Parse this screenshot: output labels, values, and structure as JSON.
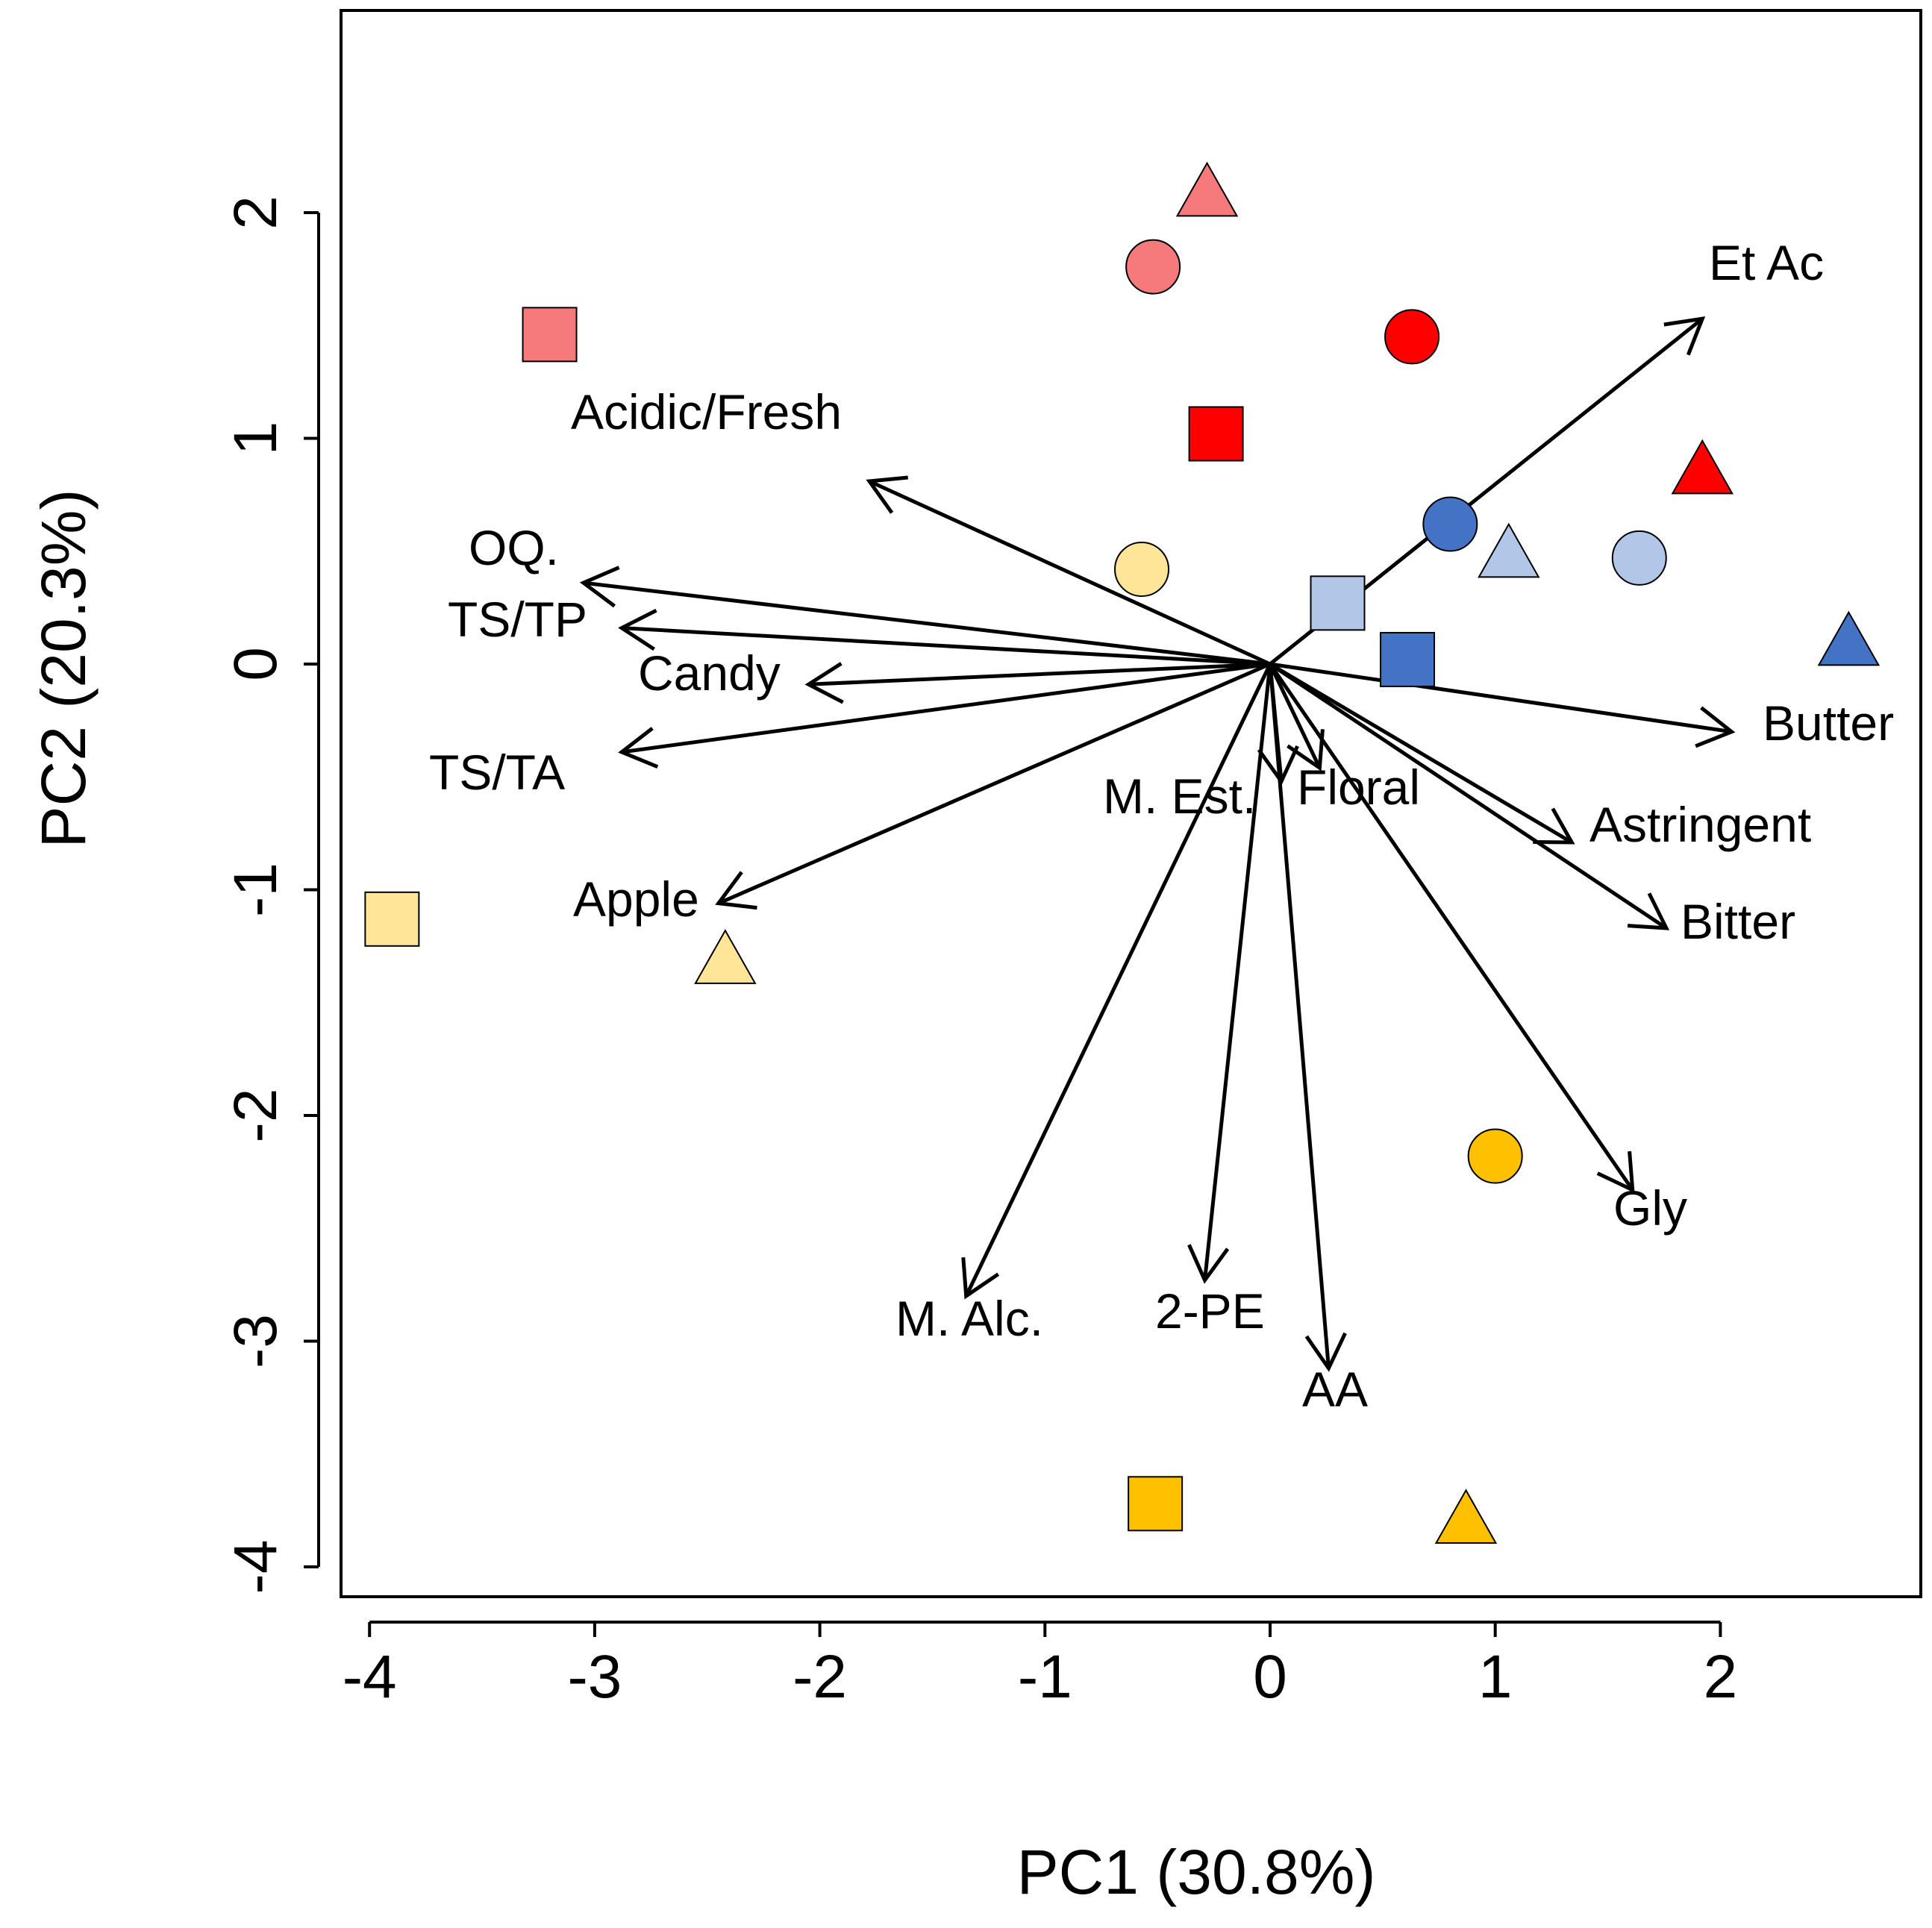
{
  "chart_data": {
    "type": "scatter",
    "subtype": "pca-biplot",
    "title": "",
    "xlabel": "PC1 (30.8%)",
    "ylabel": "PC2 (20.3%)",
    "xlim": [
      -4.15,
      2.9
    ],
    "ylim": [
      -4.2,
      2.9
    ],
    "x_ticks": [
      -4,
      -3,
      -2,
      -1,
      0,
      1,
      2
    ],
    "x_tick_labels": [
      "-4",
      "-3",
      "-2",
      "-1",
      "0",
      "1",
      "2"
    ],
    "y_ticks": [
      -4,
      -3,
      -2,
      -1,
      0,
      1,
      2
    ],
    "y_tick_labels": [
      "-4",
      "-3",
      "-2",
      "-1",
      "0",
      "1",
      "2"
    ],
    "grid": false,
    "legend": "none",
    "colors": {
      "light_red": "#F67A7C",
      "red": "#FF0000",
      "light_blue": "#B2C6E8",
      "blue": "#4472C4",
      "light_yellow": "#FEE598",
      "yellow": "#FFC000"
    },
    "scores": [
      {
        "shape": "triangle",
        "color": "#F67A7C",
        "x": -0.28,
        "y": 2.08
      },
      {
        "shape": "circle",
        "color": "#F67A7C",
        "x": -0.52,
        "y": 1.76
      },
      {
        "shape": "square",
        "color": "#F67A7C",
        "x": -3.2,
        "y": 1.46
      },
      {
        "shape": "circle",
        "color": "#FF0000",
        "x": 0.63,
        "y": 1.45
      },
      {
        "shape": "square",
        "color": "#FF0000",
        "x": -0.24,
        "y": 1.02
      },
      {
        "shape": "triangle",
        "color": "#FF0000",
        "x": 1.92,
        "y": 0.85
      },
      {
        "shape": "circle",
        "color": "#4472C4",
        "x": 0.8,
        "y": 0.62
      },
      {
        "shape": "triangle",
        "color": "#B2C6E8",
        "x": 1.06,
        "y": 0.48
      },
      {
        "shape": "circle",
        "color": "#B2C6E8",
        "x": 1.64,
        "y": 0.47
      },
      {
        "shape": "circle",
        "color": "#FEE598",
        "x": -0.57,
        "y": 0.42
      },
      {
        "shape": "square",
        "color": "#B2C6E8",
        "x": 0.3,
        "y": 0.27
      },
      {
        "shape": "square",
        "color": "#4472C4",
        "x": 0.61,
        "y": 0.02
      },
      {
        "shape": "triangle",
        "color": "#4472C4",
        "x": 2.57,
        "y": 0.09
      },
      {
        "shape": "square",
        "color": "#FEE598",
        "x": -3.9,
        "y": -1.13
      },
      {
        "shape": "triangle",
        "color": "#FEE598",
        "x": -2.42,
        "y": -1.32
      },
      {
        "shape": "circle",
        "color": "#FFC000",
        "x": 1.0,
        "y": -2.18
      },
      {
        "shape": "square",
        "color": "#FFC000",
        "x": -0.51,
        "y": -3.72
      },
      {
        "shape": "triangle",
        "color": "#FFC000",
        "x": 0.87,
        "y": -3.8
      }
    ],
    "loadings": [
      {
        "name": "Et Ac",
        "x": 1.92,
        "y": 1.53
      },
      {
        "name": "Acidic/Fresh",
        "x": -1.78,
        "y": 0.81
      },
      {
        "name": "OQ.",
        "x": -3.05,
        "y": 0.36
      },
      {
        "name": "TS/TP",
        "x": -2.88,
        "y": 0.16
      },
      {
        "name": "Candy",
        "x": -2.05,
        "y": -0.09
      },
      {
        "name": "TS/TA",
        "x": -2.88,
        "y": -0.39
      },
      {
        "name": "Apple",
        "x": -2.45,
        "y": -1.06
      },
      {
        "name": "Butter",
        "x": 2.05,
        "y": -0.3
      },
      {
        "name": "M. Est.",
        "x": 0.05,
        "y": -0.52
      },
      {
        "name": "Floral",
        "x": 0.22,
        "y": -0.46
      },
      {
        "name": "Astringent",
        "x": 1.34,
        "y": -0.79
      },
      {
        "name": "Bitter",
        "x": 1.76,
        "y": -1.17
      },
      {
        "name": "Gly",
        "x": 1.61,
        "y": -2.33
      },
      {
        "name": "M. Alc.",
        "x": -1.35,
        "y": -2.8
      },
      {
        "name": "2-PE",
        "x": -0.29,
        "y": -2.73
      },
      {
        "name": "AA",
        "x": 0.26,
        "y": -3.12
      }
    ]
  },
  "loading_labels": {
    "Et Ac": "Et Ac",
    "Acidic/Fresh": "Acidic/Fresh",
    "OQ.": "OQ.",
    "TS/TP": "TS/TP",
    "Candy": "Candy",
    "TS/TA": "TS/TA",
    "Apple": "Apple",
    "Butter": "Butter",
    "M. Est.": "M. Est.",
    "Floral": "Floral",
    "Astringent": "Astringent",
    "Bitter": "Bitter",
    "Gly": "Gly",
    "M. Alc.": "M. Alc.",
    "2-PE": "2-PE",
    "AA": "AA"
  }
}
